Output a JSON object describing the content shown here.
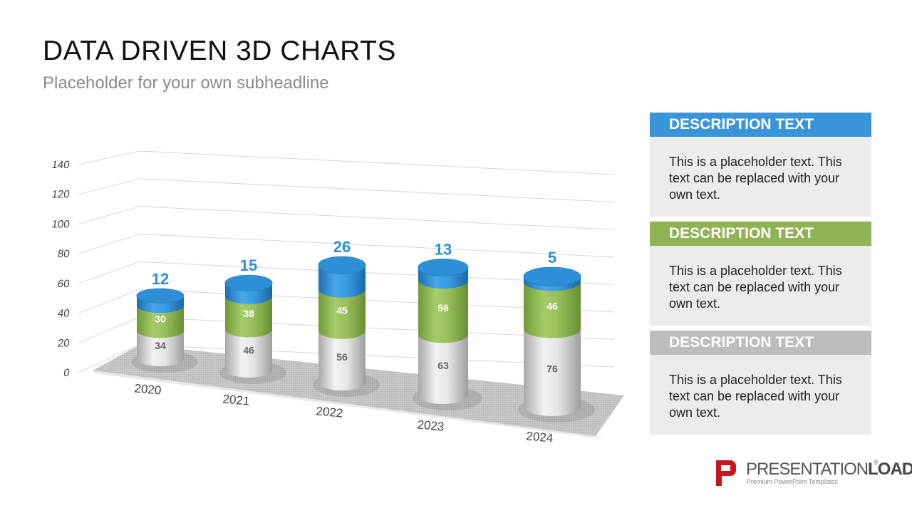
{
  "header": {
    "title": "DATA DRIVEN 3D CHARTS",
    "subtitle": "Placeholder for your own subheadline"
  },
  "chart_data": {
    "type": "bar",
    "stacked": true,
    "style": "3d-cylinder",
    "categories": [
      "2020",
      "2021",
      "2022",
      "2023",
      "2024"
    ],
    "series": [
      {
        "values": [
          34,
          46,
          56,
          63,
          76
        ],
        "color": "#d9d9d9"
      },
      {
        "values": [
          30,
          38,
          45,
          56,
          46
        ],
        "color": "#8db553"
      },
      {
        "values": [
          12,
          15,
          26,
          13,
          5
        ],
        "color": "#2f8fd6"
      }
    ],
    "yticks": [
      "0",
      "20",
      "40",
      "60",
      "80",
      "100",
      "120",
      "140"
    ],
    "ylim": [
      0,
      140
    ],
    "grid": true
  },
  "panels": [
    {
      "heading": "DESCRIPTION TEXT",
      "body": "This is a placeholder text. This text can be replaced with your own text.",
      "color": "#3a95d8"
    },
    {
      "heading": "DESCRIPTION TEXT",
      "body": "This is a placeholder text. This text can be replaced with your own text.",
      "color": "#8fb255"
    },
    {
      "heading": "DESCRIPTION TEXT",
      "body": "This is a placeholder text. This text can be replaced with your own text.",
      "color": "#bdbdbd"
    }
  ],
  "logo": {
    "name_a": "PRESENTATION",
    "name_b": "LOAD",
    "registered": "®",
    "tagline": "Premium PowerPoint Templates",
    "color": "#c4161c"
  }
}
